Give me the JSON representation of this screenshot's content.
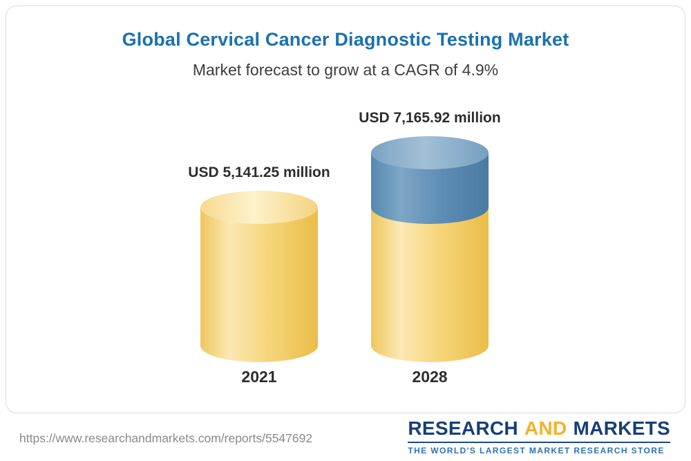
{
  "chart_data": {
    "type": "bar",
    "bar_style": "3d-cylinder",
    "title": "Global Cervical Cancer Diagnostic Testing Market",
    "subtitle": "Market forecast to grow at a CAGR of 4.9%",
    "cagr": "4.9%",
    "unit": "USD million",
    "categories": [
      "2021",
      "2028"
    ],
    "values": [
      5141.25,
      7165.92
    ],
    "value_labels": [
      "USD 5,141.25 million",
      "USD 7,165.92 million"
    ],
    "colors": {
      "base_segment": "#F5D173",
      "growth_segment": "#5D8DB5",
      "title_text": "#1A71AE",
      "label_text": "#2D2D2D"
    },
    "notes": "2028 bar shows the growth above the 2021 value as a blue top segment; both bars share the same baseline."
  },
  "footer": {
    "url": "https://www.researchandmarkets.com/reports/5547692",
    "logo": {
      "research": "RESEARCH",
      "and": "AND",
      "markets": "MARKETS",
      "tagline": "THE WORLD'S LARGEST MARKET RESEARCH STORE"
    }
  }
}
